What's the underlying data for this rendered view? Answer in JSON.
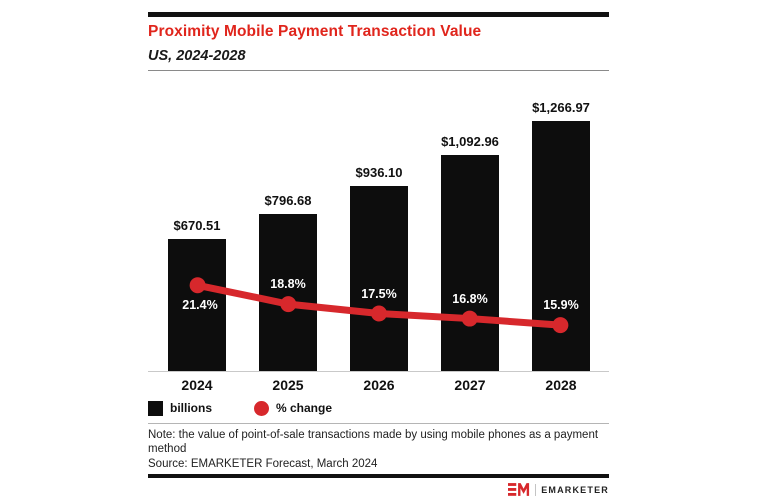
{
  "header": {
    "title": "Proximity Mobile Payment Transaction Value",
    "subtitle": "US, 2024-2028"
  },
  "chart_data": {
    "type": "bar",
    "title": "Proximity Mobile Payment Transaction Value, US, 2024-2028",
    "categories": [
      "2024",
      "2025",
      "2026",
      "2027",
      "2028"
    ],
    "series": [
      {
        "name": "billions",
        "type": "bar",
        "values": [
          670.51,
          796.68,
          936.1,
          1092.96,
          1266.97
        ],
        "labels": [
          "$670.51",
          "$796.68",
          "$936.10",
          "$1,092.96",
          "$1,266.97"
        ],
        "color": "#0d0d0d"
      },
      {
        "name": "% change",
        "type": "line",
        "values": [
          21.4,
          18.8,
          17.5,
          16.8,
          15.9
        ],
        "labels": [
          "21.4%",
          "18.8%",
          "17.5%",
          "16.8%",
          "15.9%"
        ],
        "color": "#d7282c"
      }
    ],
    "xlabel": "",
    "ylabel": "",
    "ylim": [
      0,
      1480
    ],
    "grid": false,
    "legend_position": "bottom-left"
  },
  "legend": {
    "bars_label": "billions",
    "line_label": "% change"
  },
  "footer": {
    "note": "Note: the value of point-of-sale transactions made by using mobile phones as a payment method",
    "source": "Source: EMARKETER Forecast, March 2024",
    "brand": "EMARKETER"
  },
  "icons": {
    "legend_square": "black-square-swatch",
    "legend_dot": "red-dot-swatch",
    "logo": "emarketer-em-logo"
  },
  "colors": {
    "accent_red": "#e0251c",
    "line_red": "#d7282c",
    "bar_black": "#0d0d0d",
    "background": "#ffffff"
  }
}
